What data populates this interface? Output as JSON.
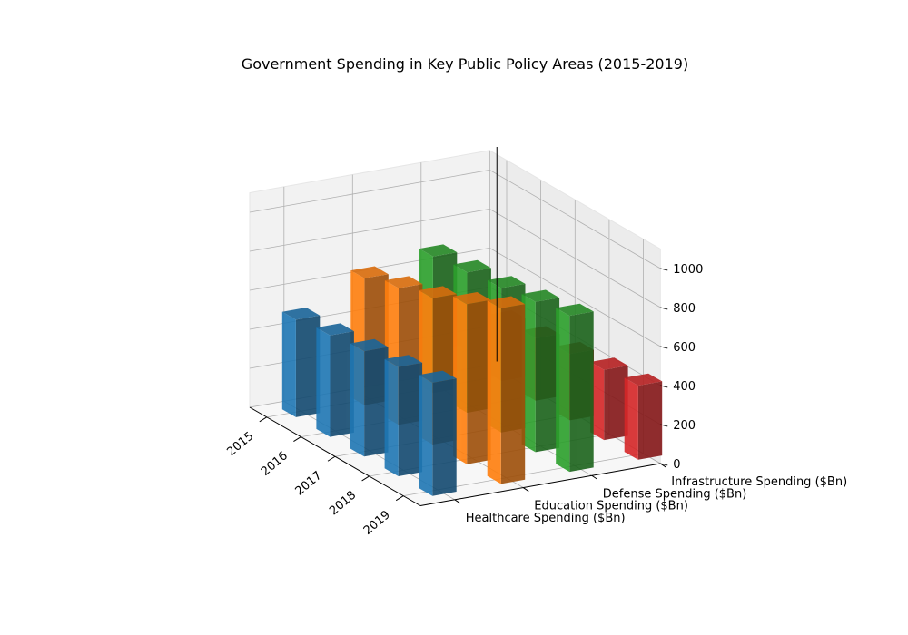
{
  "chart_data": {
    "type": "bar",
    "title": "Government Spending in Key Public Policy Areas (2015-2019)",
    "categories": [
      "2015",
      "2016",
      "2017",
      "2018",
      "2019"
    ],
    "series": [
      {
        "name": "Healthcare Spending ($Bn)",
        "color": "#1f77b4",
        "values": [
          500,
          520,
          540,
          560,
          580
        ]
      },
      {
        "name": "Education Spending ($Bn)",
        "color": "#ff7f0e",
        "values": [
          650,
          700,
          750,
          820,
          900
        ]
      },
      {
        "name": "Defense Spending ($Bn)",
        "color": "#2ca02c",
        "values": [
          700,
          720,
          740,
          770,
          800
        ]
      },
      {
        "name": "Infrastructure Spending ($Bn)",
        "color": "#d62728",
        "values": [
          300,
          320,
          340,
          360,
          380
        ]
      }
    ],
    "zlim": [
      0,
      1100
    ],
    "zticks": [
      0,
      200,
      400,
      600,
      800,
      1000
    ],
    "grid": true,
    "legend": "none"
  }
}
